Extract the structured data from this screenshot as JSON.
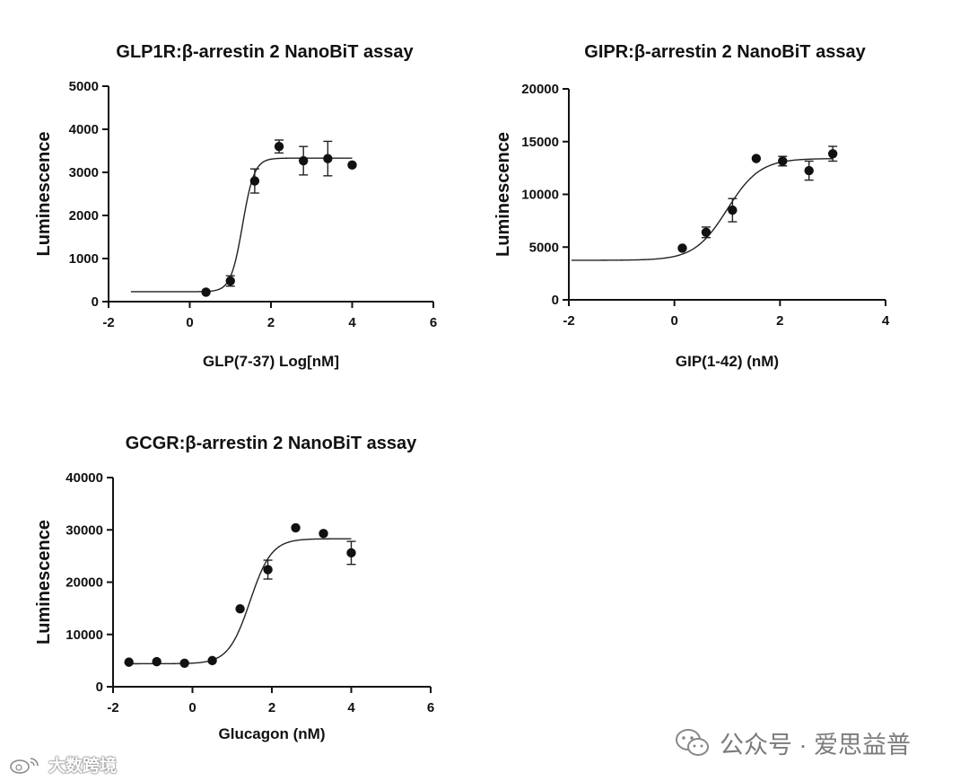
{
  "chart_data": [
    {
      "id": "glp1r",
      "type": "scatter",
      "title": "GLP1R:β-arrestin 2 NanoBiT assay",
      "xlabel": "GLP(7-37) Log[nM]",
      "ylabel": "Luminescence",
      "xlim": [
        -2,
        6
      ],
      "ylim": [
        0,
        5000
      ],
      "xticks": [
        -2,
        0,
        2,
        4,
        6
      ],
      "yticks": [
        0,
        1000,
        2000,
        3000,
        4000,
        5000
      ],
      "xtick_labels": [
        "-2",
        "0",
        "2",
        "4",
        "6"
      ],
      "ytick_labels": [
        "0",
        "1000",
        "2000",
        "3000",
        "4000",
        "5000"
      ],
      "points": [
        {
          "x": 0.4,
          "y": 220,
          "err": 0
        },
        {
          "x": 1.0,
          "y": 480,
          "err": 120
        },
        {
          "x": 1.6,
          "y": 2800,
          "err": 280
        },
        {
          "x": 2.2,
          "y": 3600,
          "err": 150
        },
        {
          "x": 2.8,
          "y": 3270,
          "err": 330
        },
        {
          "x": 3.4,
          "y": 3320,
          "err": 400
        },
        {
          "x": 4.0,
          "y": 3170,
          "err": 0
        }
      ],
      "fit": {
        "bottom": 230,
        "top": 3330,
        "ec50": 1.3,
        "hill": 3.0,
        "x_start": -1.45,
        "x_end": 4.0
      }
    },
    {
      "id": "gipr",
      "type": "scatter",
      "title": "GIPR:β-arrestin 2 NanoBiT assay",
      "xlabel": "GIP(1-42) (nM)",
      "ylabel": "Luminescence",
      "xlim": [
        -2,
        4
      ],
      "ylim": [
        0,
        20000
      ],
      "xticks": [
        -2,
        0,
        2,
        4
      ],
      "yticks": [
        0,
        5000,
        10000,
        15000,
        20000
      ],
      "xtick_labels": [
        "-2",
        "0",
        "2",
        "4"
      ],
      "ytick_labels": [
        "0",
        "5000",
        "10000",
        "15000",
        "20000"
      ],
      "points": [
        {
          "x": 0.15,
          "y": 4900,
          "err": 0
        },
        {
          "x": 0.6,
          "y": 6400,
          "err": 500
        },
        {
          "x": 1.1,
          "y": 8500,
          "err": 1100
        },
        {
          "x": 1.55,
          "y": 13400,
          "err": 0
        },
        {
          "x": 2.05,
          "y": 13150,
          "err": 450
        },
        {
          "x": 2.55,
          "y": 12250,
          "err": 900
        },
        {
          "x": 3.0,
          "y": 13850,
          "err": 700
        }
      ],
      "fit": {
        "bottom": 3750,
        "top": 13400,
        "ec50": 1.0,
        "hill": 1.4,
        "x_start": -1.95,
        "x_end": 3.0
      }
    },
    {
      "id": "gcgr",
      "type": "scatter",
      "title": "GCGR:β-arrestin 2 NanoBiT assay",
      "xlabel": "Glucagon (nM)",
      "ylabel": "Luminescence",
      "xlim": [
        -2,
        6
      ],
      "ylim": [
        0,
        40000
      ],
      "xticks": [
        -2,
        0,
        2,
        4,
        6
      ],
      "yticks": [
        0,
        10000,
        20000,
        30000,
        40000
      ],
      "xtick_labels": [
        "-2",
        "0",
        "2",
        "4",
        "6"
      ],
      "ytick_labels": [
        "0",
        "10000",
        "20000",
        "30000",
        "40000"
      ],
      "points": [
        {
          "x": -1.6,
          "y": 4700,
          "err": 0
        },
        {
          "x": -0.9,
          "y": 4800,
          "err": 0
        },
        {
          "x": -0.2,
          "y": 4500,
          "err": 0
        },
        {
          "x": 0.5,
          "y": 5000,
          "err": 0
        },
        {
          "x": 1.2,
          "y": 14900,
          "err": 0
        },
        {
          "x": 1.9,
          "y": 22400,
          "err": 1800
        },
        {
          "x": 2.6,
          "y": 30400,
          "err": 0
        },
        {
          "x": 3.3,
          "y": 29300,
          "err": 0
        },
        {
          "x": 4.0,
          "y": 25600,
          "err": 2200
        }
      ],
      "fit": {
        "bottom": 4400,
        "top": 28300,
        "ec50": 1.45,
        "hill": 1.6,
        "x_start": -1.6,
        "x_end": 4.0
      }
    }
  ],
  "watermarks": {
    "left_text": "大数跨境",
    "right_text": "公众号 · 爱思益普",
    "left_icon": "weibo-icon",
    "right_icon": "wechat-icon"
  }
}
